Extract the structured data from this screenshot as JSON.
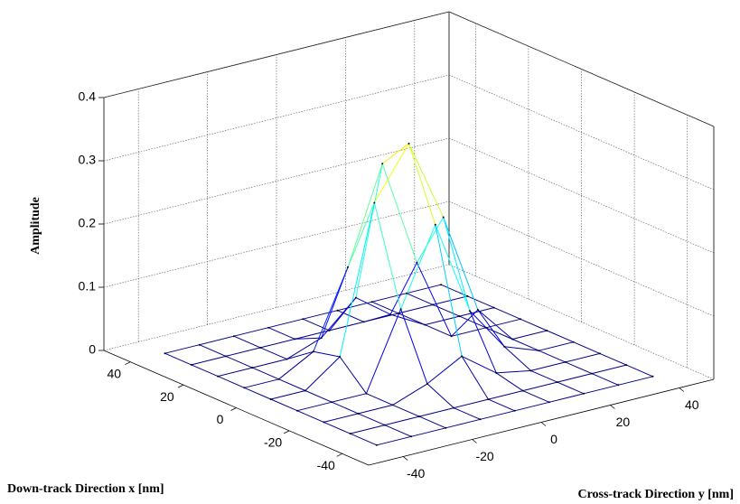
{
  "chart_data": {
    "type": "surface",
    "xlabel": "Down-track Direction x [nm]",
    "ylabel": "Cross-track Direction y [nm]",
    "zlabel": "Amplitude",
    "x": [
      -40,
      -30,
      -20,
      -10,
      0,
      10,
      20,
      30,
      40
    ],
    "y": [
      -40,
      -30,
      -20,
      -10,
      0,
      10,
      20,
      30,
      40
    ],
    "z": [
      [
        0,
        0,
        0,
        0,
        0,
        0,
        0,
        0,
        0
      ],
      [
        0,
        0,
        0,
        0,
        0,
        0,
        0,
        0,
        0
      ],
      [
        0,
        0,
        0,
        0.02,
        0.05,
        0.01,
        0,
        0,
        0
      ],
      [
        0,
        0,
        0,
        0.12,
        0.24,
        0.09,
        0.02,
        0,
        0
      ],
      [
        0,
        0,
        0.04,
        0.27,
        0.35,
        0.22,
        0.06,
        0,
        0
      ],
      [
        0,
        0,
        0.03,
        0.15,
        0.3,
        0.13,
        0,
        0,
        0
      ],
      [
        0,
        0,
        0,
        0.02,
        0.07,
        0.03,
        0,
        0,
        0
      ],
      [
        0,
        0,
        0,
        0,
        0,
        0,
        0,
        0,
        0
      ],
      [
        0,
        0,
        0,
        0,
        0,
        0,
        0,
        0,
        0
      ]
    ],
    "xlim": [
      -50,
      50
    ],
    "ylim": [
      -50,
      50
    ],
    "zlim": [
      0,
      0.4
    ],
    "xticks": [
      -40,
      -20,
      0,
      20,
      40
    ],
    "yticks": [
      -40,
      -20,
      0,
      20,
      40
    ],
    "zticks": [
      0,
      0.1,
      0.2,
      0.3,
      0.4
    ],
    "grid": true,
    "colormap": [
      "#00008b",
      "#0000ff",
      "#00ffff",
      "#7fff7f",
      "#ffff00",
      "#ff0000"
    ]
  }
}
